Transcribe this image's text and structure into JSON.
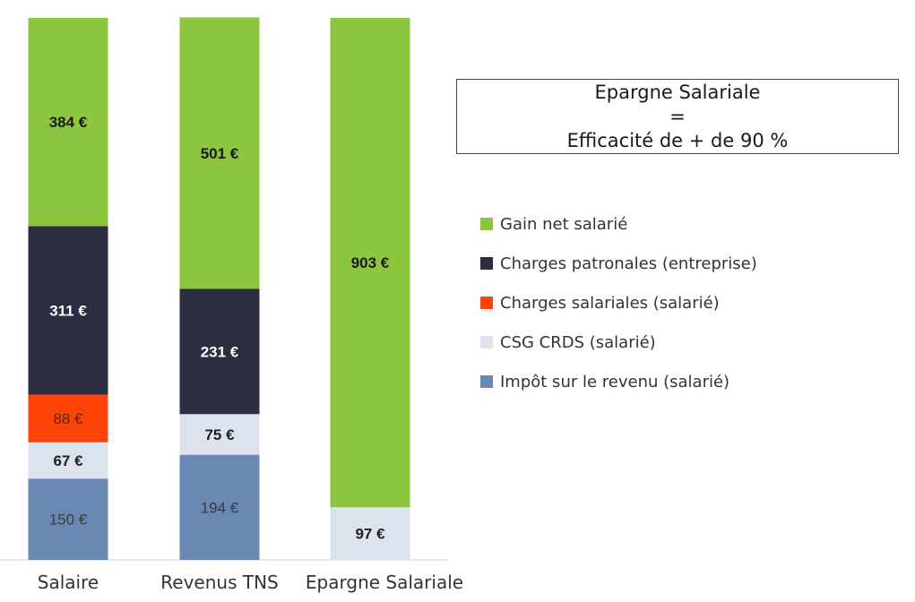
{
  "callout": {
    "line1": "Epargne Salariale",
    "line2": "=",
    "line3": "Efficacité de + de 90 %"
  },
  "chart_data": {
    "type": "bar",
    "stacked": true,
    "categories": [
      "Salaire",
      "Revenus TNS",
      "Epargne Salariale"
    ],
    "series": [
      {
        "name": "Impôt sur le revenu (salarié)",
        "color": "#6a88b4",
        "values": [
          150,
          194,
          0
        ],
        "labels": [
          "150 €",
          "194 €",
          ""
        ],
        "label_color": "#3b3b3b"
      },
      {
        "name": "CSG CRDS (salarié)",
        "color": "#dde3ec",
        "values": [
          67,
          75,
          97
        ],
        "labels": [
          "67 €",
          "75 €",
          "97 €"
        ],
        "label_color": "#1f1f1f"
      },
      {
        "name": "Charges salariales (salarié)",
        "color": "#ff4208",
        "values": [
          88,
          0,
          0
        ],
        "labels": [
          "88 €",
          "",
          ""
        ],
        "label_color": "#5a2a10"
      },
      {
        "name": "Charges patronales (entreprise)",
        "color": "#2b2d41",
        "values": [
          311,
          231,
          0
        ],
        "labels": [
          "311 €",
          "231 €",
          ""
        ],
        "label_color": "#ffffff"
      },
      {
        "name": "Gain net salarié",
        "color": "#8cc63e",
        "values": [
          384,
          501,
          903
        ],
        "labels": [
          "384 €",
          "501 €",
          "903 €"
        ],
        "label_color": "#1a1a1a"
      }
    ],
    "legend_order": [
      4,
      3,
      2,
      1,
      0
    ],
    "legend_position": "right",
    "ylim": [
      0,
      1000
    ],
    "grid": false
  }
}
